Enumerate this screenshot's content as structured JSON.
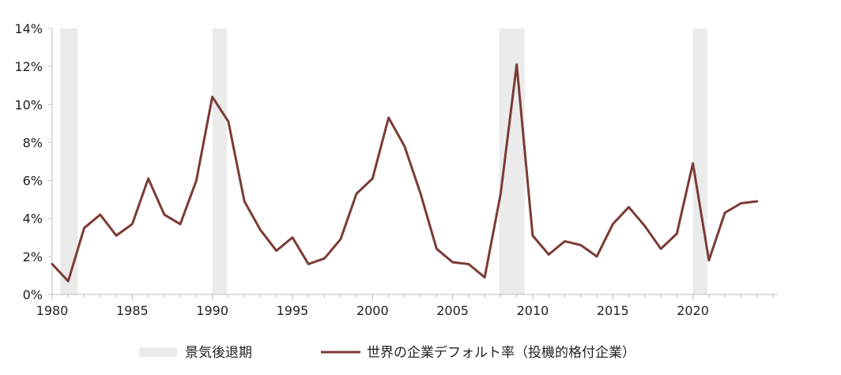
{
  "chart_data": {
    "type": "line",
    "title": "",
    "xlabel": "",
    "ylabel": "",
    "xlim": [
      1980,
      2024
    ],
    "ylim": [
      0,
      14
    ],
    "x_ticks": [
      "1980",
      "1985",
      "1990",
      "1995",
      "2000",
      "2005",
      "2010",
      "2015",
      "2020"
    ],
    "y_ticks": [
      "0%",
      "2%",
      "4%",
      "6%",
      "8%",
      "10%",
      "12%",
      "14%"
    ],
    "grid": false,
    "legend_position": "bottom",
    "recessions": [
      {
        "start": 1980.5,
        "end": 1981.6
      },
      {
        "start": 1990.0,
        "end": 1990.9
      },
      {
        "start": 2007.9,
        "end": 2009.5
      },
      {
        "start": 2020.0,
        "end": 2020.9
      }
    ],
    "series": [
      {
        "name": "世界の企業デフォルト率（投機的格付企業）",
        "color": "#7b3b35",
        "x": [
          1980,
          1981,
          1982,
          1983,
          1984,
          1985,
          1986,
          1987,
          1988,
          1989,
          1990,
          1991,
          1992,
          1993,
          1994,
          1995,
          1996,
          1997,
          1998,
          1999,
          2000,
          2001,
          2002,
          2003,
          2004,
          2005,
          2006,
          2007,
          2008,
          2009,
          2010,
          2011,
          2012,
          2013,
          2014,
          2015,
          2016,
          2017,
          2018,
          2019,
          2020,
          2021,
          2022,
          2023,
          2024
        ],
        "values": [
          1.6,
          0.7,
          3.5,
          4.2,
          3.1,
          3.7,
          6.1,
          4.2,
          3.7,
          6.0,
          10.4,
          9.1,
          4.9,
          3.4,
          2.3,
          3.0,
          1.6,
          1.9,
          2.9,
          5.3,
          6.1,
          9.3,
          7.8,
          5.3,
          2.4,
          1.7,
          1.6,
          0.9,
          5.3,
          12.1,
          3.1,
          2.1,
          2.8,
          2.6,
          2.0,
          3.7,
          4.6,
          3.6,
          2.4,
          3.2,
          6.9,
          1.8,
          4.3,
          4.8,
          4.9
        ]
      }
    ],
    "legend": {
      "recession_label": "景気後退期",
      "series_label": "世界の企業デフォルト率（投機的格付企業）"
    },
    "colors": {
      "recession": "#ebebeb",
      "line": "#7b3b35",
      "axis": "#bfbfbf"
    }
  }
}
